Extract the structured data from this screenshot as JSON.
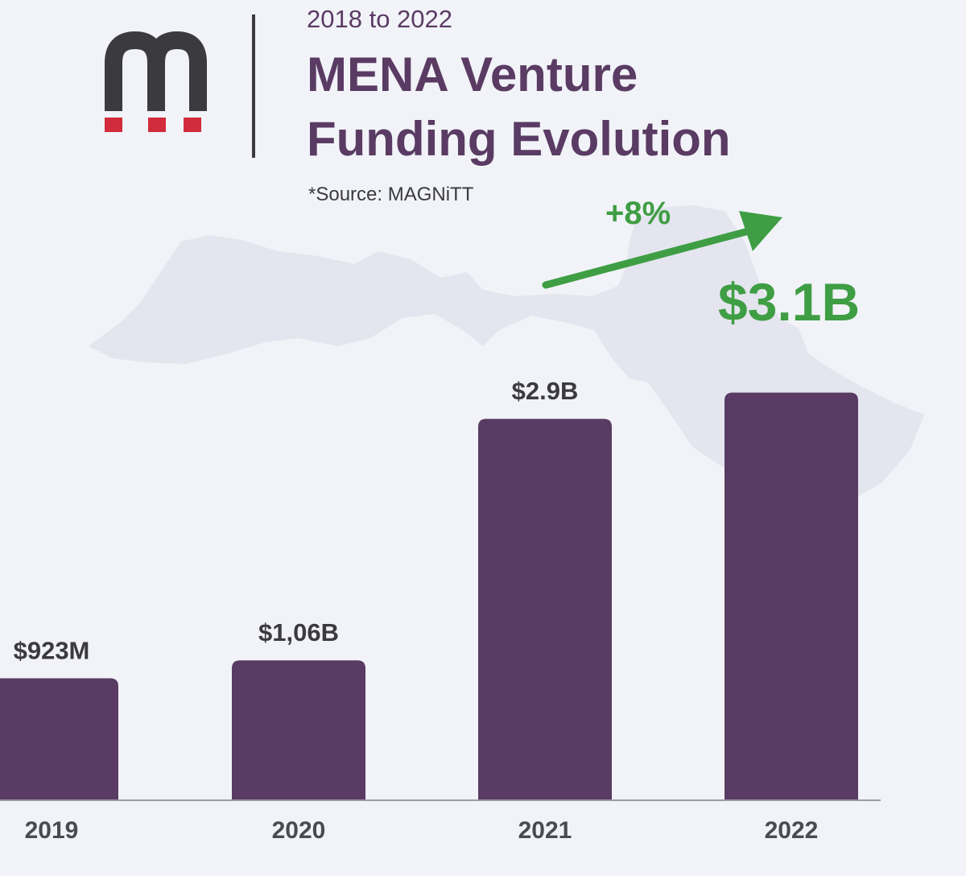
{
  "header": {
    "subtitle": "2018 to 2022",
    "title_line1": "MENA Venture",
    "title_line2": "Funding Evolution",
    "source": "*Source: MAGNiTT"
  },
  "colors": {
    "bar": "#5a3b63",
    "title": "#5a3b63",
    "highlight": "#3f9e44",
    "logo_dark": "#3a3a3f",
    "logo_red": "#d22b3b",
    "map": "#e4e5ee"
  },
  "icons": {
    "logo": "magnitt-logo",
    "arrow": "growth-arrow-icon",
    "map": "mena-map"
  },
  "annotation": {
    "growth": "+8%",
    "highlight_value": "$3.1B"
  },
  "chart_data": {
    "type": "bar",
    "title": "MENA Venture Funding Evolution",
    "subtitle": "2018 to 2022",
    "categories": [
      "2019",
      "2020",
      "2021",
      "2022"
    ],
    "values": [
      0.923,
      1.06,
      2.9,
      3.1
    ],
    "value_unit": "USD billions",
    "data_labels": [
      "$923M",
      "$1,06B",
      "$2.9B",
      ""
    ],
    "xlabel": "",
    "ylabel": "",
    "ylim": [
      0,
      3.3
    ],
    "grid": false,
    "legend": "none",
    "annotations": [
      "+8%",
      "$3.1B"
    ]
  }
}
